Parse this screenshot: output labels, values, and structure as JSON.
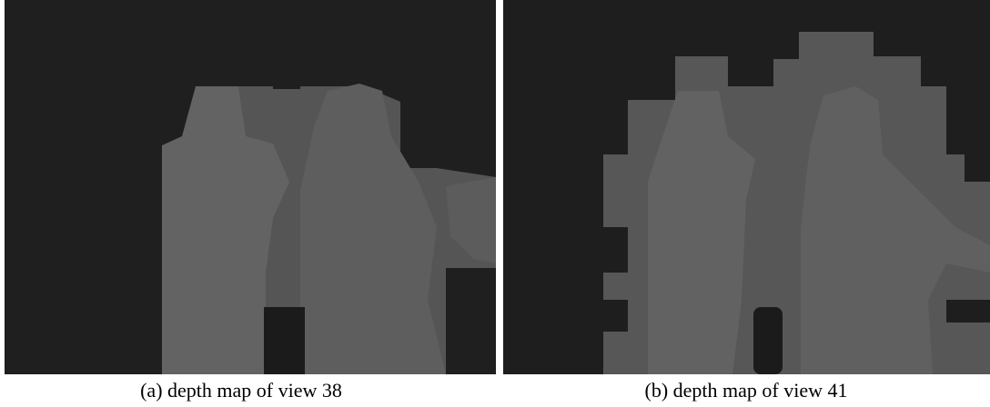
{
  "figures": [
    {
      "caption": "(a) depth map of view 38"
    },
    {
      "caption": "(b) depth map of view 41"
    }
  ]
}
